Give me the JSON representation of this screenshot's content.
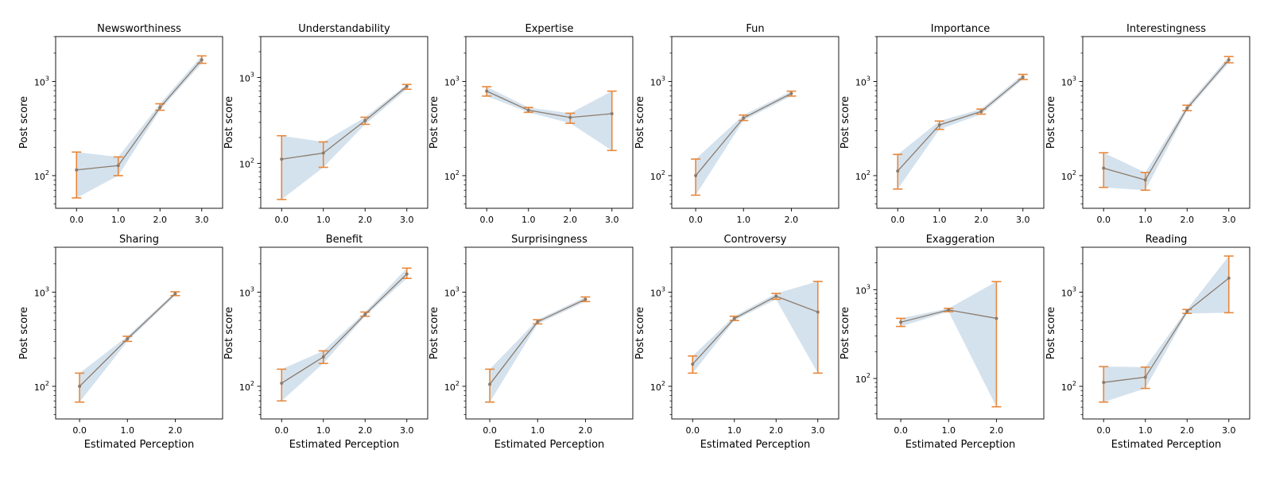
{
  "chart_data": [
    {
      "type": "line",
      "title": "Newsworthiness",
      "ylabel": "Post score",
      "xlabel": "",
      "x": [
        0,
        1,
        2,
        3
      ],
      "y": [
        115,
        128,
        530,
        1700
      ],
      "err_low": [
        58,
        100,
        495,
        1560
      ],
      "err_high": [
        178,
        158,
        580,
        1870
      ],
      "x_tick_labels": [
        "0.0",
        "1.0",
        "2.0",
        "3.0"
      ],
      "xlim": [
        -0.5,
        3.5
      ],
      "ylim": [
        45,
        3000
      ],
      "y_tick_labels": [
        {
          "base": "10",
          "exp": "2",
          "value": 100
        },
        {
          "base": "10",
          "exp": "3",
          "value": 1000
        }
      ],
      "yscale": "log"
    },
    {
      "type": "line",
      "title": "Understandability",
      "ylabel": "Post score",
      "xlabel": "",
      "x": [
        0,
        1,
        2,
        3
      ],
      "y": [
        112,
        132,
        315,
        790
      ],
      "err_low": [
        38,
        90,
        285,
        730
      ],
      "err_high": [
        210,
        178,
        345,
        830
      ],
      "x_tick_labels": [
        "0.0",
        "1.0",
        "2.0",
        "3.0"
      ],
      "xlim": [
        -0.5,
        3.5
      ],
      "ylim": [
        30,
        3000
      ],
      "y_tick_labels": [
        {
          "base": "10",
          "exp": "2",
          "value": 100
        },
        {
          "base": "10",
          "exp": "3",
          "value": 1000
        }
      ],
      "yscale": "log"
    },
    {
      "type": "line",
      "title": "Expertise",
      "ylabel": "Post score",
      "xlabel": "",
      "x": [
        0,
        1,
        2,
        3
      ],
      "y": [
        790,
        495,
        415,
        455
      ],
      "err_low": [
        700,
        470,
        360,
        185
      ],
      "err_high": [
        880,
        530,
        460,
        790
      ],
      "x_tick_labels": [
        "0.0",
        "1.0",
        "2.0",
        "3.0"
      ],
      "xlim": [
        -0.5,
        3.5
      ],
      "ylim": [
        45,
        3000
      ],
      "y_tick_labels": [
        {
          "base": "10",
          "exp": "2",
          "value": 100
        },
        {
          "base": "10",
          "exp": "3",
          "value": 1000
        }
      ],
      "yscale": "log"
    },
    {
      "type": "line",
      "title": "Fun",
      "ylabel": "Post score",
      "xlabel": "",
      "x": [
        0,
        1,
        2
      ],
      "y": [
        100,
        410,
        745
      ],
      "err_low": [
        62,
        385,
        700
      ],
      "err_high": [
        150,
        440,
        790
      ],
      "x_tick_labels": [
        "0.0",
        "1.0",
        "2.0"
      ],
      "xlim": [
        -0.5,
        2.99
      ],
      "ylim": [
        45,
        3000
      ],
      "y_tick_labels": [
        {
          "base": "10",
          "exp": "2",
          "value": 100
        },
        {
          "base": "10",
          "exp": "3",
          "value": 1000
        }
      ],
      "yscale": "log"
    },
    {
      "type": "line",
      "title": "Importance",
      "ylabel": "Post score",
      "xlabel": "",
      "x": [
        0,
        1,
        2,
        3
      ],
      "y": [
        112,
        345,
        480,
        1110
      ],
      "err_low": [
        72,
        310,
        450,
        1050
      ],
      "err_high": [
        168,
        380,
        510,
        1190
      ],
      "x_tick_labels": [
        "0.0",
        "1.0",
        "2.0",
        "3.0"
      ],
      "xlim": [
        -0.5,
        3.5
      ],
      "ylim": [
        45,
        3000
      ],
      "y_tick_labels": [
        {
          "base": "10",
          "exp": "2",
          "value": 100
        },
        {
          "base": "10",
          "exp": "3",
          "value": 1000
        }
      ],
      "yscale": "log"
    },
    {
      "type": "line",
      "title": "Interestingness",
      "ylabel": "Post score",
      "xlabel": "",
      "x": [
        0,
        1,
        2,
        3
      ],
      "y": [
        120,
        90,
        520,
        1700
      ],
      "err_low": [
        75,
        70,
        490,
        1580
      ],
      "err_high": [
        175,
        108,
        560,
        1840
      ],
      "x_tick_labels": [
        "0.0",
        "1.0",
        "2.0",
        "3.0"
      ],
      "xlim": [
        -0.5,
        3.5
      ],
      "ylim": [
        45,
        3000
      ],
      "y_tick_labels": [
        {
          "base": "10",
          "exp": "2",
          "value": 100
        },
        {
          "base": "10",
          "exp": "3",
          "value": 1000
        }
      ],
      "yscale": "log"
    },
    {
      "type": "line",
      "title": "Sharing",
      "ylabel": "Post score",
      "xlabel": "Estimated Perception",
      "x": [
        0,
        1,
        2
      ],
      "y": [
        100,
        320,
        965
      ],
      "err_low": [
        68,
        300,
        920
      ],
      "err_high": [
        138,
        340,
        1010
      ],
      "x_tick_labels": [
        "0.0",
        "1.0",
        "2.0"
      ],
      "xlim": [
        -0.5,
        2.99
      ],
      "ylim": [
        45,
        3000
      ],
      "y_tick_labels": [
        {
          "base": "10",
          "exp": "2",
          "value": 100
        },
        {
          "base": "10",
          "exp": "3",
          "value": 1000
        }
      ],
      "yscale": "log"
    },
    {
      "type": "line",
      "title": "Benefit",
      "ylabel": "Post score",
      "xlabel": "Estimated Perception",
      "x": [
        0,
        1,
        2,
        3
      ],
      "y": [
        108,
        205,
        580,
        1560
      ],
      "err_low": [
        70,
        175,
        555,
        1400
      ],
      "err_high": [
        152,
        238,
        615,
        1800
      ],
      "x_tick_labels": [
        "0.0",
        "1.0",
        "2.0",
        "3.0"
      ],
      "xlim": [
        -0.5,
        3.5
      ],
      "ylim": [
        45,
        3000
      ],
      "y_tick_labels": [
        {
          "base": "10",
          "exp": "2",
          "value": 100
        },
        {
          "base": "10",
          "exp": "3",
          "value": 1000
        }
      ],
      "yscale": "log"
    },
    {
      "type": "line",
      "title": "Surprisingness",
      "ylabel": "Post score",
      "xlabel": "Estimated Perception",
      "x": [
        0,
        1,
        2
      ],
      "y": [
        105,
        485,
        840
      ],
      "err_low": [
        68,
        460,
        795
      ],
      "err_high": [
        152,
        510,
        890
      ],
      "x_tick_labels": [
        "0.0",
        "1.0",
        "2.0"
      ],
      "xlim": [
        -0.5,
        2.99
      ],
      "ylim": [
        45,
        3000
      ],
      "y_tick_labels": [
        {
          "base": "10",
          "exp": "2",
          "value": 100
        },
        {
          "base": "10",
          "exp": "3",
          "value": 1000
        }
      ],
      "yscale": "log"
    },
    {
      "type": "line",
      "title": "Controversy",
      "ylabel": "Post score",
      "xlabel": "Estimated Perception",
      "x": [
        0,
        1,
        2,
        3
      ],
      "y": [
        172,
        525,
        905,
        615
      ],
      "err_low": [
        138,
        500,
        840,
        138
      ],
      "err_high": [
        210,
        555,
        970,
        1300
      ],
      "x_tick_labels": [
        "0.0",
        "1.0",
        "2.0",
        "3.0"
      ],
      "xlim": [
        -0.5,
        3.5
      ],
      "ylim": [
        45,
        3000
      ],
      "y_tick_labels": [
        {
          "base": "10",
          "exp": "2",
          "value": 100
        },
        {
          "base": "10",
          "exp": "3",
          "value": 1000
        }
      ],
      "yscale": "log"
    },
    {
      "type": "line",
      "title": "Exaggeration",
      "ylabel": "Post score",
      "xlabel": "Estimated Perception",
      "x": [
        0,
        1,
        2
      ],
      "y": [
        430,
        590,
        475
      ],
      "err_low": [
        385,
        565,
        48
      ],
      "err_high": [
        475,
        615,
        1230
      ],
      "x_tick_labels": [
        "0.0",
        "1.0",
        "2.0"
      ],
      "xlim": [
        -0.5,
        2.99
      ],
      "ylim": [
        35,
        3000
      ],
      "y_tick_labels": [
        {
          "base": "10",
          "exp": "2",
          "value": 100
        },
        {
          "base": "10",
          "exp": "3",
          "value": 1000
        }
      ],
      "yscale": "log"
    },
    {
      "type": "line",
      "title": "Reading",
      "ylabel": "Post score",
      "xlabel": "Estimated Perception",
      "x": [
        0,
        1,
        2,
        3
      ],
      "y": [
        110,
        125,
        625,
        1410
      ],
      "err_low": [
        68,
        95,
        595,
        605
      ],
      "err_high": [
        162,
        160,
        655,
        2420
      ],
      "x_tick_labels": [
        "0.0",
        "1.0",
        "2.0",
        "3.0"
      ],
      "xlim": [
        -0.5,
        3.5
      ],
      "ylim": [
        45,
        3000
      ],
      "y_tick_labels": [
        {
          "base": "10",
          "exp": "2",
          "value": 100
        },
        {
          "base": "10",
          "exp": "3",
          "value": 1000
        }
      ],
      "yscale": "log"
    }
  ],
  "colors": {
    "line": "#8c7b6b",
    "errorbar": "#e8873a",
    "band": "#c5d8e8",
    "marker": "#8c7b6b"
  }
}
